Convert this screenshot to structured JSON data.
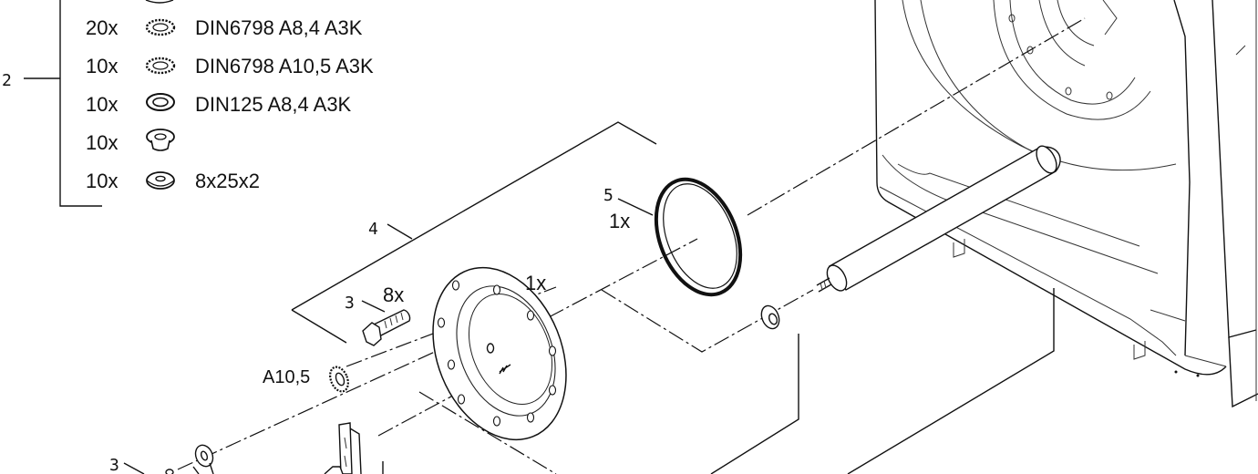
{
  "parts_list": {
    "group_callout": "2",
    "rows": [
      {
        "qty": "20x",
        "icon": "toothed-lock-washer-icon",
        "spec": "DIN6798 A8,4 A3K"
      },
      {
        "qty": "10x",
        "icon": "toothed-lock-washer-icon",
        "spec": "DIN6798 A10,5 A3K"
      },
      {
        "qty": "10x",
        "icon": "flat-washer-icon",
        "spec": "DIN125 A8,4 A3K"
      },
      {
        "qty": "10x",
        "icon": "shouldered-washer-icon",
        "spec": ""
      },
      {
        "qty": "10x",
        "icon": "thick-washer-icon",
        "spec": "8x25x2"
      }
    ]
  },
  "callouts": {
    "assembly_4": "4",
    "ring_5": "5",
    "ring_qty": "1x",
    "flange_qty": "1x",
    "bolt_ref": "3",
    "bolt_qty": "8x",
    "washer_label": "A10,5",
    "lower_ref": "3"
  }
}
